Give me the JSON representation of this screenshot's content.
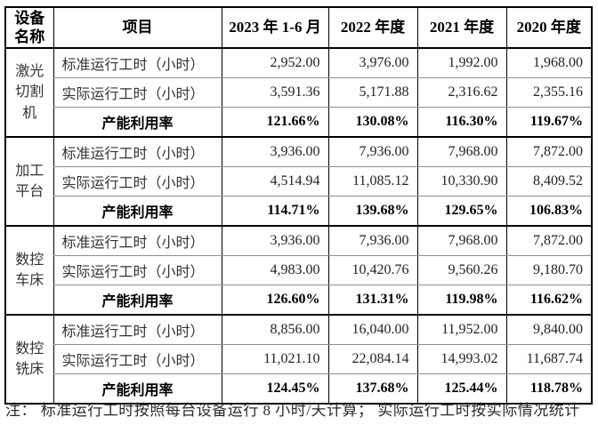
{
  "table": {
    "header": {
      "device": "设备名称",
      "item": "项目",
      "periods": [
        "2023 年 1-6 月",
        "2022 年度",
        "2021 年度",
        "2020 年度"
      ]
    },
    "row_labels": {
      "standard": "标准运行工时（小时）",
      "actual": "实际运行工时（小时）",
      "utilization": "产能利用率"
    },
    "groups": [
      {
        "device": "激光切割机",
        "standard": [
          "2,952.00",
          "3,976.00",
          "1,992.00",
          "1,968.00"
        ],
        "actual": [
          "3,591.36",
          "5,171.88",
          "2,316.62",
          "2,355.16"
        ],
        "utilization": [
          "121.66%",
          "130.08%",
          "116.30%",
          "119.67%"
        ]
      },
      {
        "device": "加工平台",
        "standard": [
          "3,936.00",
          "7,936.00",
          "7,968.00",
          "7,872.00"
        ],
        "actual": [
          "4,514.94",
          "11,085.12",
          "10,330.90",
          "8,409.52"
        ],
        "utilization": [
          "114.71%",
          "139.68%",
          "129.65%",
          "106.83%"
        ]
      },
      {
        "device": "数控车床",
        "standard": [
          "3,936.00",
          "7,936.00",
          "7,968.00",
          "7,872.00"
        ],
        "actual": [
          "4,983.00",
          "10,420.76",
          "9,560.26",
          "9,180.70"
        ],
        "utilization": [
          "126.60%",
          "131.31%",
          "119.98%",
          "116.62%"
        ]
      },
      {
        "device": "数控铣床",
        "standard": [
          "8,856.00",
          "16,040.00",
          "11,952.00",
          "9,840.00"
        ],
        "actual": [
          "11,021.10",
          "22,084.14",
          "14,993.02",
          "11,687.74"
        ],
        "utilization": [
          "124.45%",
          "137.68%",
          "125.44%",
          "118.78%"
        ]
      }
    ]
  },
  "note": "注：  标准运行工时按照每台设备运行 8 小时/天计算；  实际运行工时按实际情况统计"
}
